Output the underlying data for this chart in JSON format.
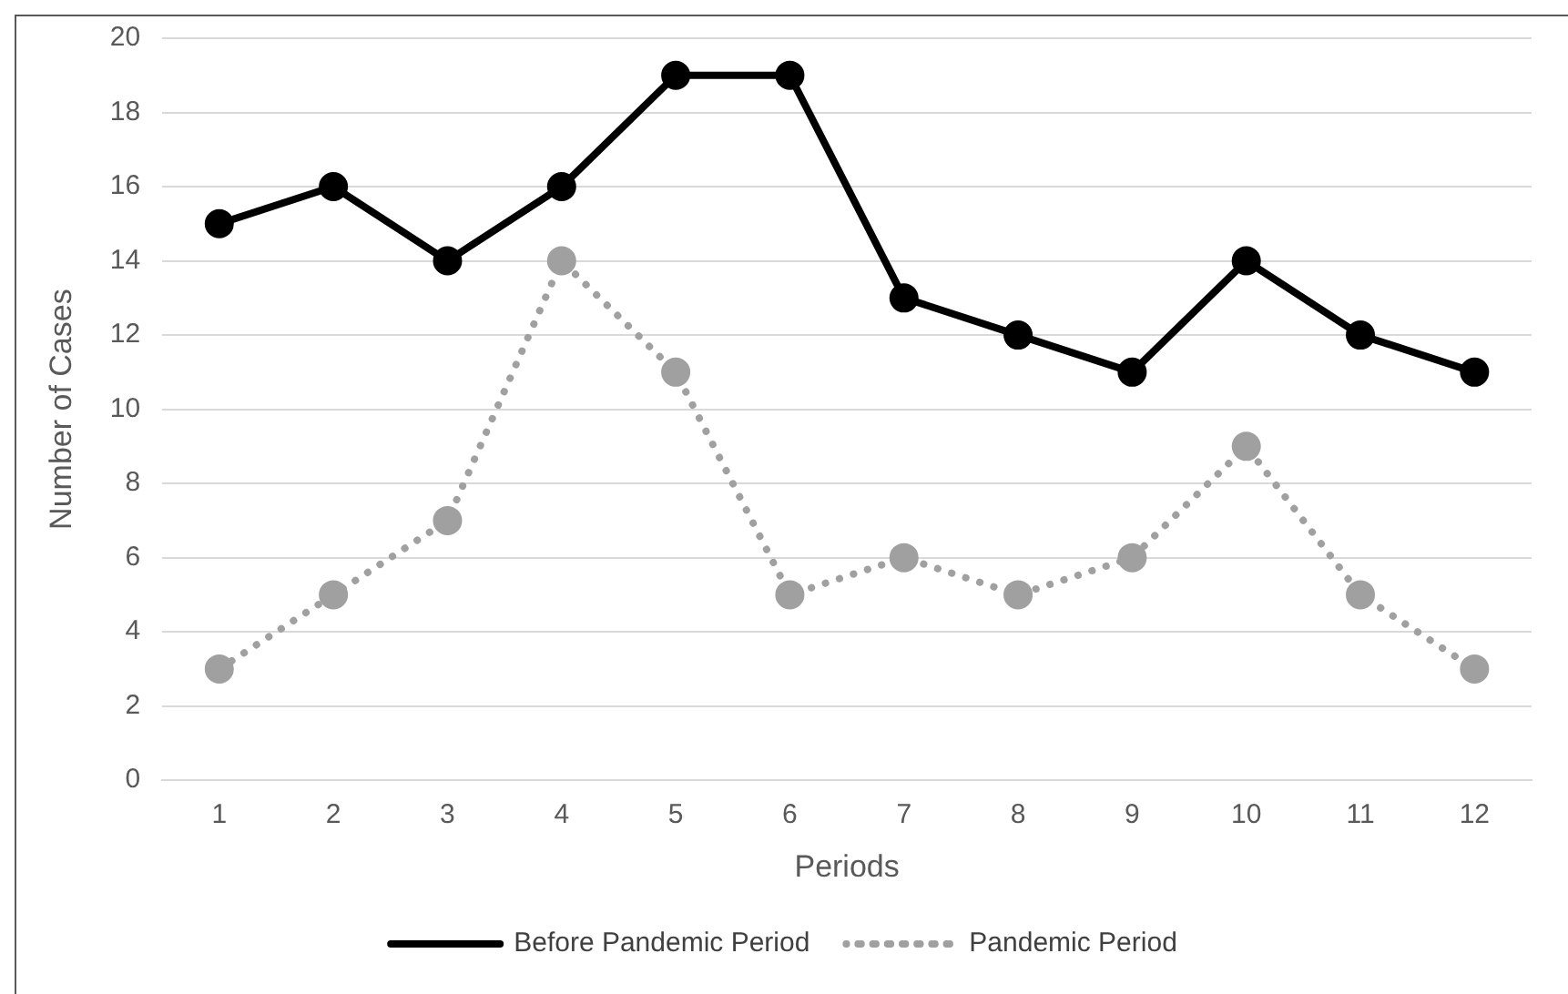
{
  "chart_data": {
    "type": "line",
    "xlabel": "Periods",
    "ylabel": "Number of Cases",
    "categories": [
      "1",
      "2",
      "3",
      "4",
      "5",
      "6",
      "7",
      "8",
      "9",
      "10",
      "11",
      "12"
    ],
    "series": [
      {
        "name": "Before Pandemic Period",
        "color": "#000000",
        "line_style": "solid",
        "values": [
          15,
          16,
          14,
          16,
          19,
          19,
          13,
          12,
          11,
          14,
          12,
          11
        ]
      },
      {
        "name": "Pandemic Period",
        "color": "#a0a0a0",
        "line_style": "dotted",
        "values": [
          3,
          5,
          7,
          14,
          11,
          5,
          6,
          5,
          6,
          9,
          5,
          3
        ]
      }
    ],
    "ylim": [
      0,
      20
    ],
    "yticks": [
      0,
      2,
      4,
      6,
      8,
      10,
      12,
      14,
      16,
      18,
      20
    ],
    "grid": "y",
    "legend": "bottom",
    "marker": "circle"
  }
}
